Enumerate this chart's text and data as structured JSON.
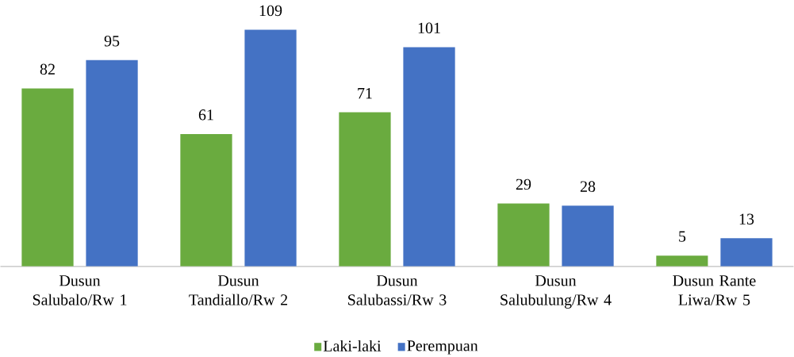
{
  "chart_data": {
    "type": "bar",
    "categories": [
      "Dusun Salubalo/Rw 1",
      "Dusun Tandiallo/Rw 2",
      "Dusun Salubassi/Rw 3",
      "Dusun Salubulung/Rw 4",
      "Dusun Rante Liwa/Rw 5"
    ],
    "series": [
      {
        "name": "Laki-laki",
        "color": "#6aab3f",
        "values": [
          82,
          61,
          71,
          29,
          5
        ]
      },
      {
        "name": "Perempuan",
        "color": "#4472c4",
        "values": [
          95,
          109,
          101,
          28,
          13
        ]
      }
    ],
    "data_labels": true,
    "legend": "bottom"
  }
}
